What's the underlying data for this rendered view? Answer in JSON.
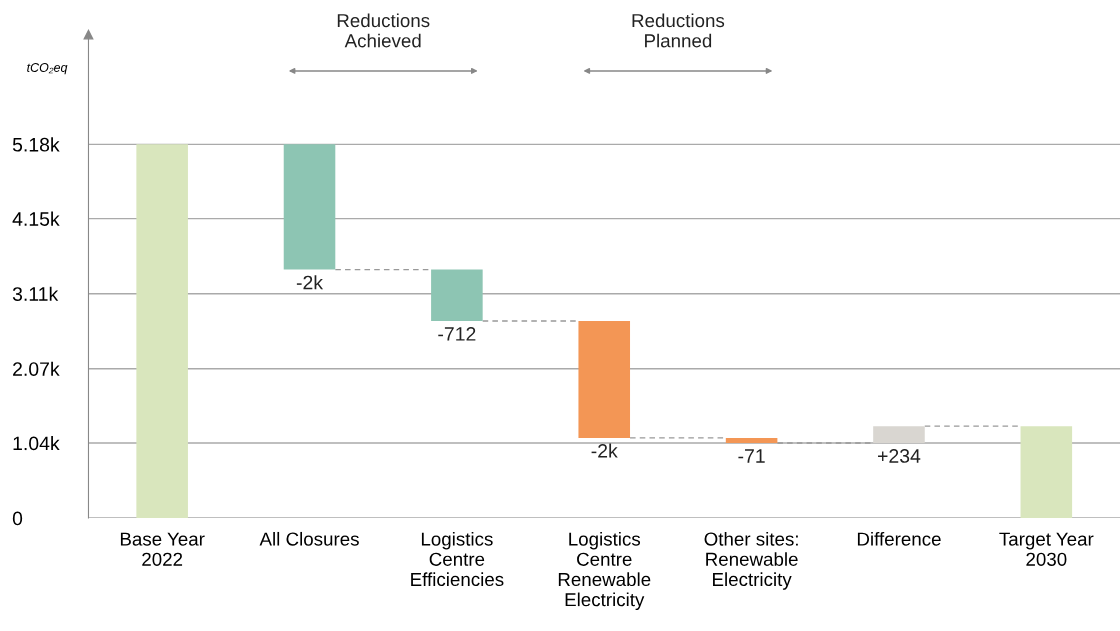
{
  "chart_data": {
    "type": "bar",
    "ylabel": "tCO₂eq",
    "categories": [
      "Base Year\n2022",
      "All Closures",
      "Logistics\nCentre\nEfficiencies",
      "Logistics\nCentre\nRenewable\nElectricity",
      "Other sites:\nRenewable\nElectricity",
      "Difference",
      "Target Year\n2030"
    ],
    "values": [
      5180,
      -1736,
      -712,
      -1621,
      -71,
      234,
      1274
    ],
    "base": [
      0,
      5180,
      3444,
      2732,
      1111,
      1040,
      0
    ],
    "colors": [
      "#d9e6bd",
      "#8dc5b3",
      "#8dc5b3",
      "#f39655",
      "#f39655",
      "#d9d6d1",
      "#d9e6bd"
    ],
    "value_labels": [
      null,
      "-2k",
      "-712",
      "-2k",
      "-71",
      "+234",
      null
    ],
    "annotations": [
      "Reductions\nAchieved",
      "Reductions\nPlanned"
    ],
    "ylim": [
      0,
      6700
    ],
    "yticks": [
      0,
      {
        "value": 1040,
        "label": "1.04k"
      },
      {
        "value": 2070,
        "label": "2.07k"
      },
      {
        "value": 3110,
        "label": "3.11k"
      },
      {
        "value": 4150,
        "label": "4.15k"
      },
      {
        "value": 5180,
        "label": "5.18k"
      }
    ],
    "grid": "y"
  }
}
